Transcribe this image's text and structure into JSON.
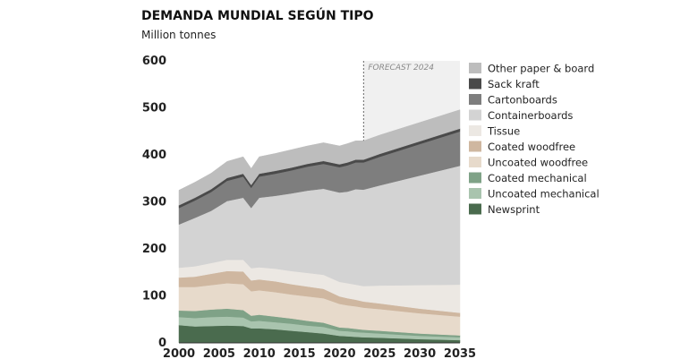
{
  "chart_data": {
    "type": "area",
    "stacked": true,
    "title": "DEMANDA MUNDIAL SEGÚN TIPO",
    "unit_label": "Million tonnes",
    "forecast_label": "FORECAST 2024",
    "forecast_start": 2023,
    "xlim": [
      2000,
      2035
    ],
    "ylim": [
      0,
      600
    ],
    "x_ticks": [
      2000,
      2005,
      2010,
      2015,
      2020,
      2025,
      2030,
      2035
    ],
    "y_ticks": [
      0,
      100,
      200,
      300,
      400,
      500,
      600
    ],
    "legend_position": "right",
    "x": [
      2000,
      2002,
      2004,
      2006,
      2008,
      2009,
      2010,
      2012,
      2014,
      2016,
      2018,
      2020,
      2021,
      2022,
      2023,
      2025,
      2030,
      2035
    ],
    "series": [
      {
        "name": "Newsprint",
        "color": "#4a6b4e",
        "values": [
          38,
          35,
          36,
          37,
          36,
          31,
          31,
          29,
          26,
          23,
          20,
          15,
          14,
          13,
          12,
          11,
          8,
          6
        ]
      },
      {
        "name": "Uncoated mechanical",
        "color": "#a9c4ae",
        "values": [
          17,
          18,
          19,
          19,
          18,
          15,
          16,
          15,
          15,
          14,
          14,
          11,
          11,
          10,
          10,
          9,
          7,
          6
        ]
      },
      {
        "name": "Coated mechanical",
        "color": "#7fa287",
        "values": [
          14,
          15,
          16,
          17,
          16,
          12,
          13,
          12,
          11,
          10,
          9,
          7,
          7,
          7,
          6,
          6,
          5,
          4
        ]
      },
      {
        "name": "Uncoated woodfree",
        "color": "#e7dacb",
        "values": [
          50,
          51,
          52,
          54,
          55,
          52,
          52,
          52,
          51,
          52,
          52,
          50,
          48,
          48,
          47,
          46,
          43,
          40
        ]
      },
      {
        "name": "Coated woodfree",
        "color": "#cfb7a0",
        "values": [
          20,
          22,
          24,
          26,
          27,
          23,
          23,
          23,
          22,
          21,
          20,
          16,
          15,
          14,
          13,
          12,
          10,
          8
        ]
      },
      {
        "name": "Tissue",
        "color": "#ece8e3",
        "values": [
          21,
          22,
          23,
          24,
          25,
          26,
          26,
          27,
          28,
          29,
          30,
          31,
          32,
          32,
          33,
          38,
          50,
          60
        ]
      },
      {
        "name": "Containerboards",
        "color": "#d3d3d3",
        "values": [
          92,
          103,
          111,
          125,
          132,
          128,
          148,
          155,
          165,
          175,
          183,
          190,
          195,
          203,
          205,
          213,
          233,
          253
        ]
      },
      {
        "name": "Cartonboards",
        "color": "#7e7e7e",
        "values": [
          35,
          37,
          40,
          43,
          45,
          43,
          45,
          47,
          49,
          51,
          53,
          54,
          56,
          57,
          58,
          61,
          67,
          73
        ]
      },
      {
        "name": "Sack kraft",
        "color": "#4a4a4a",
        "values": [
          6,
          6,
          6,
          6,
          6,
          6,
          6,
          6,
          6,
          6,
          6,
          6,
          6,
          6,
          6,
          6,
          6,
          6
        ]
      },
      {
        "name": "Other paper & board",
        "color": "#bdbdbd",
        "values": [
          32,
          33,
          34,
          35,
          36,
          35,
          36,
          37,
          38,
          38,
          39,
          39,
          40,
          40,
          40,
          40,
          40,
          40
        ]
      }
    ]
  }
}
